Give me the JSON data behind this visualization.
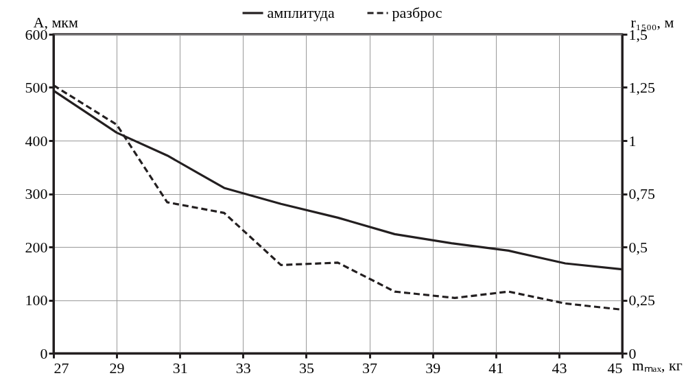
{
  "chart_data": {
    "type": "line",
    "xlabel": "mₘₐₓ, кг",
    "ylabel": "A, мкм",
    "y2label": "r₁₅₀₀, м",
    "xlim": [
      27,
      45
    ],
    "xticks": [
      27,
      29,
      31,
      33,
      35,
      37,
      39,
      41,
      43,
      45
    ],
    "ylim": [
      0,
      600
    ],
    "yticks": [
      0,
      100,
      200,
      300,
      400,
      500,
      600
    ],
    "y2lim": [
      0,
      1.5
    ],
    "y2ticks": [
      {
        "value": 0,
        "label": "0"
      },
      {
        "value": 0.25,
        "label": "0,25"
      },
      {
        "value": 0.5,
        "label": "0,5"
      },
      {
        "value": 0.75,
        "label": "0,75"
      },
      {
        "value": 1,
        "label": "1"
      },
      {
        "value": 1.25,
        "label": "1,25"
      },
      {
        "value": 1.5,
        "label": "1,5"
      }
    ],
    "grid": true,
    "legend": "top",
    "marker": "none",
    "series": [
      {
        "name": "амплитуда",
        "color": "#231f20",
        "line_style": "solid",
        "x": [
          27,
          29,
          30.6,
          32.4,
          34.2,
          36,
          37.8,
          39.6,
          41.4,
          43.2,
          45
        ],
        "values": [
          494,
          415,
          372,
          311,
          281,
          255,
          224,
          207,
          193,
          169,
          158
        ]
      },
      {
        "name": "разброс",
        "color": "#231f20",
        "line_style": "dashed",
        "axis": "y2",
        "x": [
          27,
          29,
          30.6,
          32.4,
          34.2,
          36,
          37.8,
          39.7,
          41.4,
          43.2,
          45
        ],
        "values": [
          1.26,
          1.075,
          0.71,
          0.66,
          0.415,
          0.426,
          0.29,
          0.26,
          0.29,
          0.234,
          0.205
        ]
      }
    ]
  }
}
